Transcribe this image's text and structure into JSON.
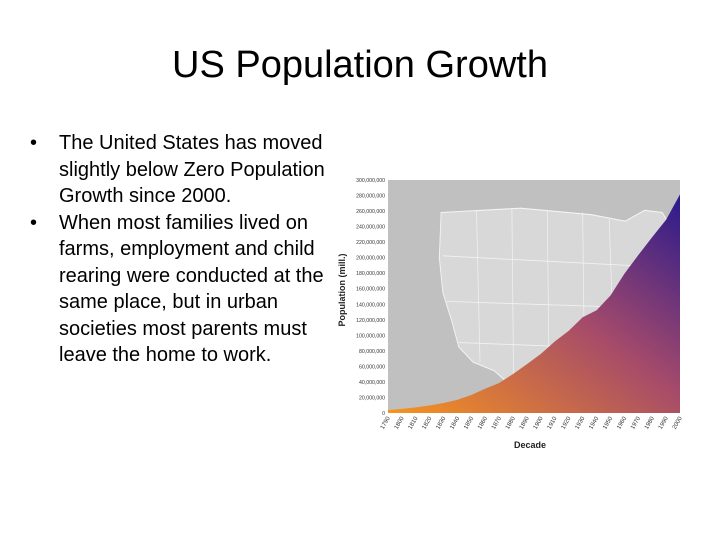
{
  "slide": {
    "title": "US Population Growth",
    "bullets": [
      "The United States has moved slightly below Zero Population Growth since 2000.",
      "When most families lived on farms, employment and child rearing were conducted at the same place, but in urban societies most parents must leave the home to work."
    ]
  },
  "chart_data": {
    "type": "area",
    "title": "",
    "xlabel": "Decade",
    "ylabel": "Population (mill.)",
    "x": [
      1790,
      1800,
      1810,
      1820,
      1830,
      1840,
      1850,
      1860,
      1870,
      1880,
      1890,
      1900,
      1910,
      1920,
      1930,
      1940,
      1950,
      1960,
      1970,
      1980,
      1990,
      2000
    ],
    "values": [
      3900000,
      5300000,
      7200000,
      9600000,
      12900000,
      17100000,
      23200000,
      31400000,
      38600000,
      50200000,
      63000000,
      76200000,
      92200000,
      106000000,
      123200000,
      132200000,
      151300000,
      179300000,
      203300000,
      226500000,
      248700000,
      281400000
    ],
    "ylim": [
      0,
      300000000
    ],
    "y_ticks": [
      "0",
      "20,000,000",
      "40,000,000",
      "60,000,000",
      "80,000,000",
      "100,000,000",
      "120,000,000",
      "140,000,000",
      "160,000,000",
      "180,000,000",
      "200,000,000",
      "220,000,000",
      "240,000,000",
      "260,000,000",
      "280,000,000",
      "300,000,000"
    ],
    "x_ticks": [
      "1790",
      "1800",
      "1810",
      "1820",
      "1830",
      "1840",
      "1850",
      "1860",
      "1870",
      "1880",
      "1890",
      "1900",
      "1910",
      "1920",
      "1930",
      "1940",
      "1950",
      "1960",
      "1970",
      "1980",
      "1990",
      "2000"
    ],
    "grid": false,
    "legend": "none",
    "colors": {
      "fill_start": "#f7941d",
      "fill_mid": "#a44a6b",
      "fill_end": "#2a1a8c",
      "plot_background": "#c0c0c0",
      "map_background": "#d8d8d8"
    }
  }
}
